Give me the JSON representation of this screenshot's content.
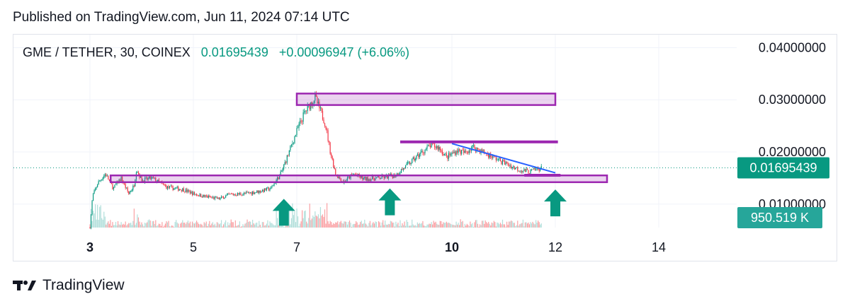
{
  "header": {
    "published": "Published on TradingView.com, Jun 11, 2024 07:14 UTC"
  },
  "legend": {
    "symbol": "GME / TETHER, 30, COINEX",
    "last": "0.01695439",
    "change": "+0.00096947 (+6.06%)"
  },
  "price_scale": {
    "labels": [
      "0.04000000",
      "0.03000000",
      "0.02000000",
      "0.01000000"
    ],
    "last_price_label": "0.01695439",
    "volume_label": "950.519 K"
  },
  "footer": {
    "brand": "TradingView"
  },
  "colors": {
    "up": "#089981",
    "down": "#f23645",
    "zone": "#9c27b0",
    "trendline": "#2962ff",
    "arrow": "#089981"
  },
  "chart_data": {
    "type": "candlestick",
    "title": "GME / TETHER, 30, COINEX",
    "x_ticks": [
      {
        "label": "3",
        "day": 3,
        "bold": true
      },
      {
        "label": "5",
        "day": 5,
        "bold": false
      },
      {
        "label": "7",
        "day": 7,
        "bold": false
      },
      {
        "label": "10",
        "day": 10,
        "bold": true
      },
      {
        "label": "12",
        "day": 12,
        "bold": false
      },
      {
        "label": "14",
        "day": 14,
        "bold": false
      }
    ],
    "ylim": [
      0.0055,
      0.0425
    ],
    "x_range_days": [
      2.0,
      15.0
    ],
    "last_price": 0.01695439,
    "price_path": [
      [
        3.0,
        0.0055
      ],
      [
        3.05,
        0.0115
      ],
      [
        3.15,
        0.014
      ],
      [
        3.3,
        0.0158
      ],
      [
        3.45,
        0.013
      ],
      [
        3.6,
        0.015
      ],
      [
        3.75,
        0.012
      ],
      [
        3.85,
        0.0135
      ],
      [
        3.9,
        0.0168
      ],
      [
        4.0,
        0.0145
      ],
      [
        4.2,
        0.015
      ],
      [
        4.5,
        0.0132
      ],
      [
        4.8,
        0.0128
      ],
      [
        5.0,
        0.012
      ],
      [
        5.2,
        0.0115
      ],
      [
        5.5,
        0.011
      ],
      [
        5.7,
        0.0118
      ],
      [
        6.0,
        0.012
      ],
      [
        6.3,
        0.0125
      ],
      [
        6.5,
        0.013
      ],
      [
        6.7,
        0.016
      ],
      [
        6.85,
        0.02
      ],
      [
        7.0,
        0.024
      ],
      [
        7.15,
        0.0275
      ],
      [
        7.25,
        0.029
      ],
      [
        7.35,
        0.0305
      ],
      [
        7.45,
        0.028
      ],
      [
        7.55,
        0.0255
      ],
      [
        7.65,
        0.02
      ],
      [
        7.75,
        0.0158
      ],
      [
        7.9,
        0.0142
      ],
      [
        8.1,
        0.0158
      ],
      [
        8.3,
        0.0148
      ],
      [
        8.6,
        0.015
      ],
      [
        8.9,
        0.0155
      ],
      [
        9.2,
        0.018
      ],
      [
        9.4,
        0.0198
      ],
      [
        9.6,
        0.0213
      ],
      [
        9.75,
        0.0208
      ],
      [
        9.9,
        0.019
      ],
      [
        10.1,
        0.0203
      ],
      [
        10.25,
        0.0198
      ],
      [
        10.4,
        0.021
      ],
      [
        10.6,
        0.02
      ],
      [
        10.8,
        0.019
      ],
      [
        11.0,
        0.018
      ],
      [
        11.2,
        0.017
      ],
      [
        11.35,
        0.0165
      ],
      [
        11.5,
        0.0162
      ],
      [
        11.7,
        0.0169
      ]
    ],
    "volume_max_label": "950.519 K",
    "annotations": {
      "zones": [
        {
          "name": "upper-resistance-zone",
          "x0": 7.0,
          "x1": 12.0,
          "y0": 0.029,
          "y1": 0.0312
        },
        {
          "name": "mid-resistance-line",
          "x0": 9.0,
          "x1": 12.05,
          "y0": 0.0218,
          "y1": 0.0222
        },
        {
          "name": "support-zone",
          "x0": 3.4,
          "x1": 13.0,
          "y0": 0.0142,
          "y1": 0.0155
        },
        {
          "name": "triangle-base-line",
          "x0": 11.4,
          "x1": 12.1,
          "y0": 0.0155,
          "y1": 0.0158
        }
      ],
      "trendline": {
        "x0": 10.0,
        "x1": 12.0,
        "y0": 0.0216,
        "y1": 0.016
      },
      "arrows": [
        {
          "name": "arrow-up-1",
          "x": 6.75,
          "y_top": 0.011
        },
        {
          "name": "arrow-up-2",
          "x": 8.8,
          "y_top": 0.013
        },
        {
          "name": "arrow-up-3",
          "x": 12.0,
          "y_top": 0.0128
        }
      ]
    }
  }
}
